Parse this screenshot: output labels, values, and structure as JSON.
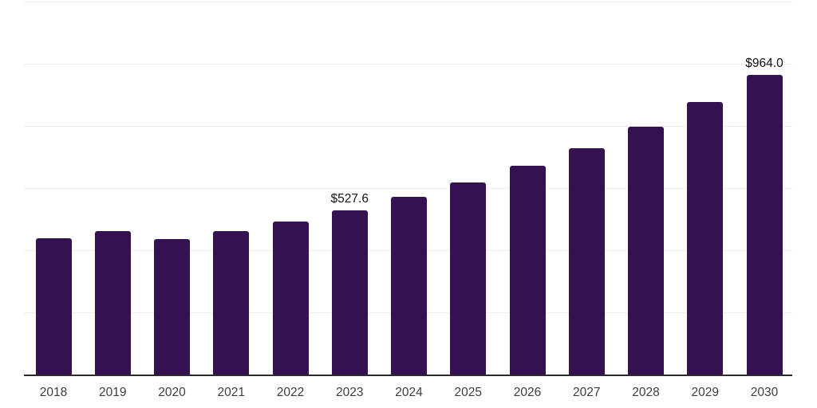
{
  "chart_data": {
    "type": "bar",
    "title": "",
    "xlabel": "",
    "ylabel": "",
    "categories": [
      "2018",
      "2019",
      "2020",
      "2021",
      "2022",
      "2023",
      "2024",
      "2025",
      "2026",
      "2027",
      "2028",
      "2029",
      "2030"
    ],
    "values": [
      438.9,
      462.6,
      437.2,
      462.6,
      493.2,
      527.6,
      572.4,
      618.6,
      672.2,
      728.4,
      797.4,
      876.8,
      964.0
    ],
    "bar_labels": [
      "",
      "",
      "",
      "",
      "",
      "$527.6",
      "",
      "",
      "",
      "",
      "",
      "",
      "$964.0"
    ],
    "ylim": [
      0,
      1200
    ],
    "gridline_step": 200,
    "grid": true,
    "legend_position": "none",
    "y_axis_labels_visible": false,
    "value_prefix": "$",
    "colors": {
      "bar": "#351152",
      "gridline": "#ededed",
      "axis_line": "#2b2b2b",
      "tick_label": "#3d3d3d",
      "value_label": "#111111",
      "background": "#ffffff"
    }
  }
}
